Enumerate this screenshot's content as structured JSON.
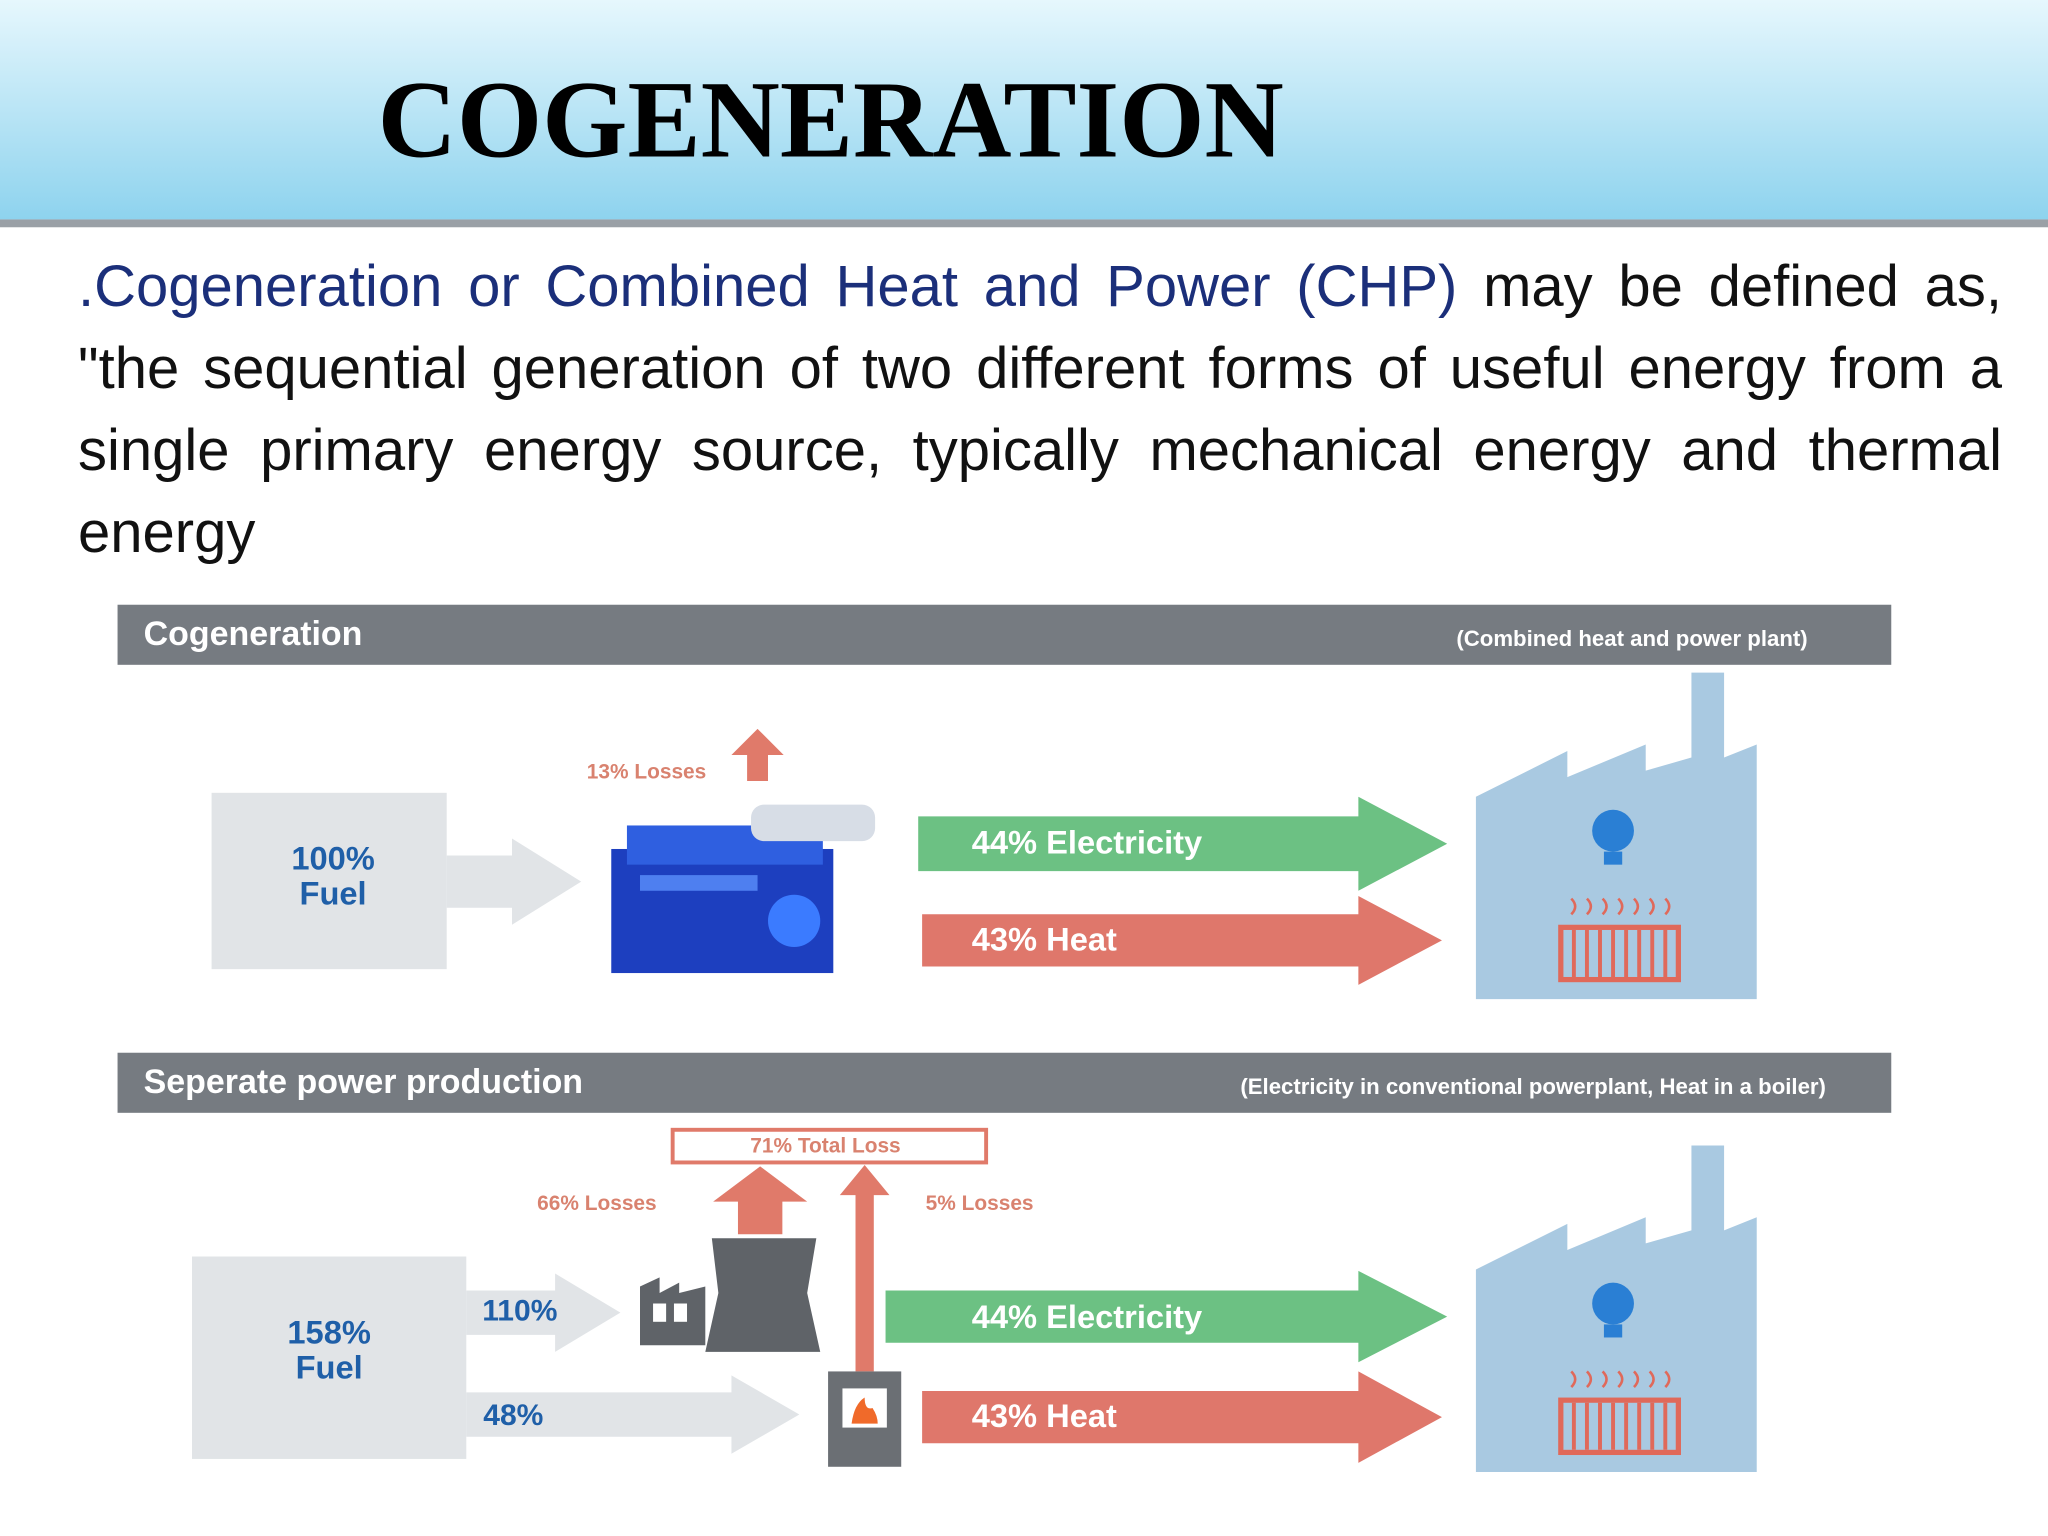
{
  "header": {
    "title": "COGENERATION"
  },
  "body": {
    "highlight": ".Cogeneration or Combined Heat and Power (CHP)",
    "text": "may be defined as, \"the sequential generation of two different forms of useful energy from a single primary energy source, typically mechanical energy and thermal energy"
  },
  "diagram": {
    "cogeneration": {
      "heading": "Cogeneration",
      "note": "(Combined heat and power plant)",
      "fuel_percent": "100%",
      "fuel_label": "Fuel",
      "losses": "13% Losses",
      "electricity": "44% Electricity",
      "heat": "43% Heat"
    },
    "separate": {
      "heading": "Seperate power production",
      "note": "(Electricity in conventional powerplant, Heat in a boiler)",
      "total_loss": "71% Total Loss",
      "plant_losses": "66% Losses",
      "boiler_losses": "5% Losses",
      "fuel_percent": "158%",
      "fuel_label": "Fuel",
      "plant_input": "110%",
      "boiler_input": "48%",
      "electricity": "44% Electricity",
      "heat": "43% Heat"
    }
  }
}
